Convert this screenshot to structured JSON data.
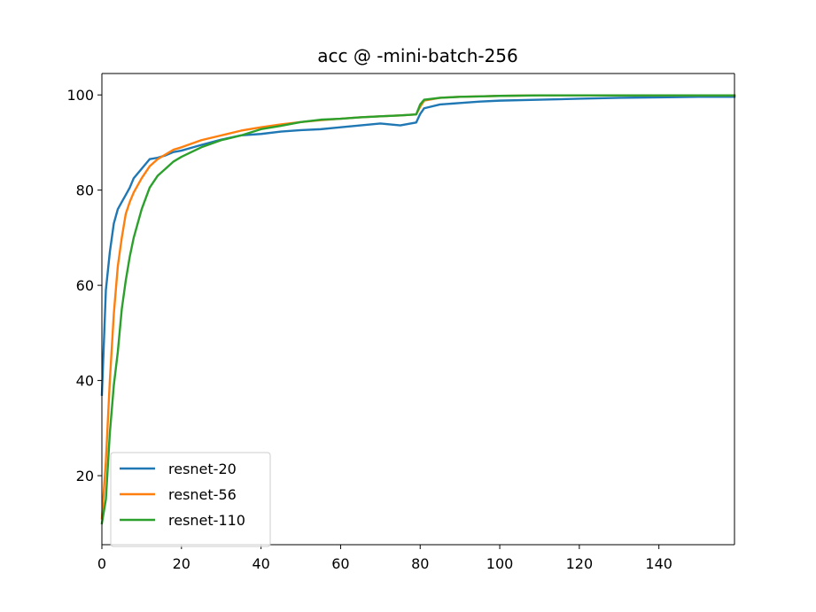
{
  "chart_data": {
    "type": "line",
    "title": "acc @ -mini-batch-256",
    "xlabel": "",
    "ylabel": "",
    "xlim": [
      0,
      159
    ],
    "ylim": [
      5.5,
      104.5
    ],
    "xticks": [
      "0",
      "20",
      "40",
      "60",
      "80",
      "100",
      "120",
      "140"
    ],
    "yticks": [
      "20",
      "40",
      "60",
      "80",
      "100"
    ],
    "grid": false,
    "legend_position": "lower-left",
    "x": [
      0,
      1,
      2,
      3,
      4,
      5,
      6,
      7,
      8,
      10,
      12,
      14,
      16,
      18,
      20,
      25,
      30,
      35,
      40,
      45,
      50,
      55,
      60,
      65,
      70,
      75,
      79,
      80,
      81,
      85,
      90,
      95,
      100,
      110,
      120,
      130,
      140,
      150,
      159
    ],
    "series": [
      {
        "name": "resnet-20",
        "color": "#1f77b4",
        "values": [
          37,
          59,
          67,
          73,
          76,
          77.5,
          79,
          80.5,
          82.5,
          84.5,
          86.5,
          86.8,
          87.3,
          88,
          88.3,
          89.5,
          90.6,
          91.5,
          91.8,
          92.3,
          92.6,
          92.8,
          93.2,
          93.6,
          94,
          93.6,
          94.2,
          96,
          97.2,
          98,
          98.3,
          98.6,
          98.8,
          99,
          99.2,
          99.4,
          99.5,
          99.6,
          99.6
        ]
      },
      {
        "name": "resnet-56",
        "color": "#ff7f0e",
        "values": [
          11,
          23,
          40,
          54,
          64,
          70,
          75,
          77.5,
          79.5,
          82.5,
          85,
          86.5,
          87.5,
          88.5,
          89,
          90.5,
          91.5,
          92.5,
          93.2,
          93.8,
          94.3,
          94.7,
          95,
          95.3,
          95.5,
          95.7,
          95.9,
          97.5,
          98.8,
          99.4,
          99.6,
          99.7,
          99.8,
          99.9,
          99.9,
          99.9,
          99.9,
          99.9,
          99.9
        ]
      },
      {
        "name": "resnet-110",
        "color": "#2ca02c",
        "values": [
          10,
          15,
          29,
          39,
          46,
          55,
          61,
          66,
          70,
          76,
          80.5,
          83,
          84.5,
          86,
          87,
          89,
          90.5,
          91.5,
          92.8,
          93.5,
          94.3,
          94.8,
          95,
          95.3,
          95.5,
          95.7,
          95.9,
          98,
          99,
          99.4,
          99.6,
          99.7,
          99.8,
          99.9,
          99.9,
          99.9,
          99.9,
          99.9,
          99.9
        ]
      }
    ]
  }
}
